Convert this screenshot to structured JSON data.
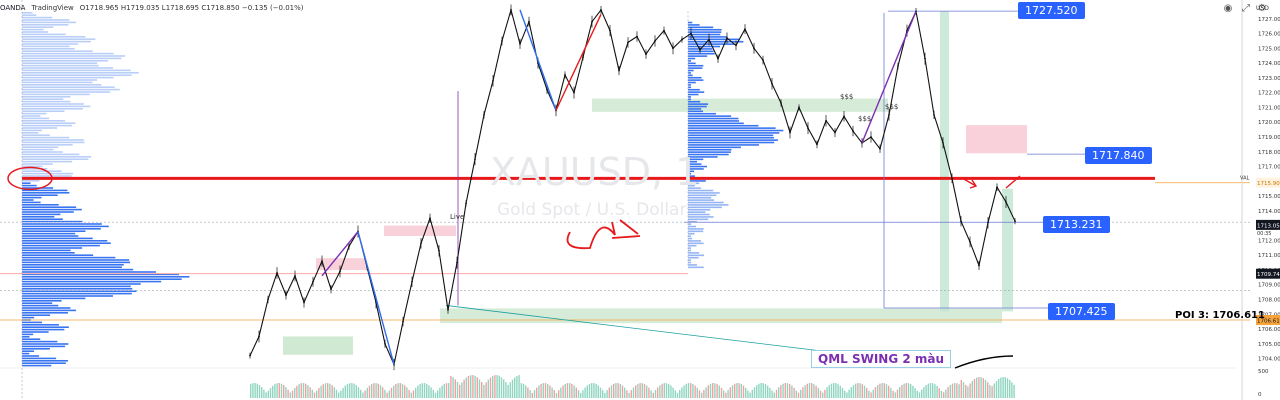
{
  "header": {
    "broker": "OANDA",
    "platform": "TradingView",
    "ohlc": "O1718.965 H1719.035 L1718.695 C1718.850 −0.135 (−0.01%)"
  },
  "watermark": {
    "symbol": "XAUUSD, 1",
    "subtitle": "Gold Spot / U.S. Dollar"
  },
  "axis": {
    "currency": "USD",
    "ticks": [
      "1727.000",
      "1726.000",
      "1725.000",
      "1724.000",
      "1723.000",
      "1722.000",
      "1721.000",
      "1720.000",
      "1719.000",
      "1718.000",
      "1717.000",
      "1716.000",
      "1715.000",
      "1714.000",
      "1713.000",
      "1712.000",
      "1711.000",
      "1710.000",
      "1709.000",
      "1708.000",
      "1707.000",
      "1706.000",
      "1705.000",
      "1704.000"
    ],
    "tick_values": [
      1727,
      1726,
      1725,
      1724,
      1723,
      1722,
      1721,
      1720,
      1719,
      1718,
      1717,
      1716,
      1715,
      1714,
      1713,
      1712,
      1711,
      1710,
      1709,
      1708,
      1707,
      1706,
      1705,
      1704
    ],
    "volume_ticks": [
      "500",
      "0"
    ],
    "val_label": "VAL",
    "val_price": "1715.904",
    "last_price": "1713.050",
    "countdown": "00:35",
    "poc_price": "1709.746",
    "poi_price_tag": "1706.611"
  },
  "price_tags": [
    {
      "label": "1727.520",
      "value": 1727.52
    },
    {
      "label": "1717.840",
      "value": 1717.84
    },
    {
      "label": "1713.231",
      "value": 1713.231
    },
    {
      "label": "1707.425",
      "value": 1707.425
    }
  ],
  "poi_label": "POI 3: 1706.611",
  "annotation_qml": "QML SWING 2 màu",
  "annotation_sss": [
    "$$$",
    "$$$",
    "$$$"
  ],
  "annotation_live": "Live",
  "colors": {
    "red_line": "#e8191c",
    "profile": "#2f6ef0",
    "demand_zone": "#cfe9d2",
    "supply_zone": "#f8c9d4",
    "candle": "#111111",
    "tag": "#2962ff",
    "orange_line": "#f6a33a"
  },
  "chart_data": {
    "type": "line",
    "title": "XAUUSD, 1",
    "subtitle": "Gold Spot / U.S. Dollar",
    "xlabel": "",
    "ylabel": "USD",
    "ylim": [
      1703.5,
      1728
    ],
    "series": [
      {
        "values": [
          1704.2,
          1705.5,
          1708.0,
          1709.8,
          1708.3,
          1709.6,
          1707.8,
          1709.2,
          1710.6,
          1708.7,
          1709.9,
          1711.6,
          1712.6,
          1710.2,
          1707.8,
          1705.0,
          1703.6,
          1706.5,
          1709.2,
          1711.8,
          1713.5,
          1711.3,
          1707.3,
          1710.5,
          1714.5,
          1717.5,
          1720.5,
          1722.8,
          1725.5,
          1727.6,
          1725.3,
          1726.8,
          1724.0,
          1722.2,
          1720.8,
          1723.2,
          1722.0,
          1724.4,
          1726.8,
          1727.6,
          1726.2,
          1723.5,
          1725.4,
          1725.8,
          1724.6,
          1725.5,
          1726.2,
          1725.0,
          1725.6,
          1726.0,
          1724.9,
          1725.6,
          1724.3,
          1725.7,
          1725.2,
          1726.3,
          1725.0,
          1724.2,
          1722.6,
          1721.3,
          1719.3,
          1721.0,
          1719.6,
          1718.5,
          1720.1,
          1719.3,
          1720.4,
          1719.4,
          1718.6,
          1719.0,
          1718.2,
          1720.5,
          1723.8,
          1726.2,
          1727.5,
          1724.3,
          1720.5,
          1718.6,
          1716.2,
          1713.3,
          1711.9,
          1710.3,
          1713.2,
          1715.6,
          1714.6,
          1713.3
        ]
      }
    ],
    "levels": [
      {
        "name": "red-line",
        "value": 1716.2
      },
      {
        "name": "val",
        "value": 1715.904
      },
      {
        "name": "poi",
        "value": 1706.611
      },
      {
        "name": "poc",
        "value": 1709.746
      }
    ],
    "zones": [
      {
        "kind": "demand",
        "from": 1706.4,
        "to": 1707.4
      },
      {
        "kind": "demand",
        "from": 1720.7,
        "to": 1721.6
      },
      {
        "kind": "supply",
        "from": 1717.9,
        "to": 1719.8
      },
      {
        "kind": "supply",
        "from": 1712.3,
        "to": 1713.0
      },
      {
        "kind": "supply",
        "from": 1710.0,
        "to": 1710.8
      }
    ],
    "grid": false,
    "legend": "none"
  }
}
